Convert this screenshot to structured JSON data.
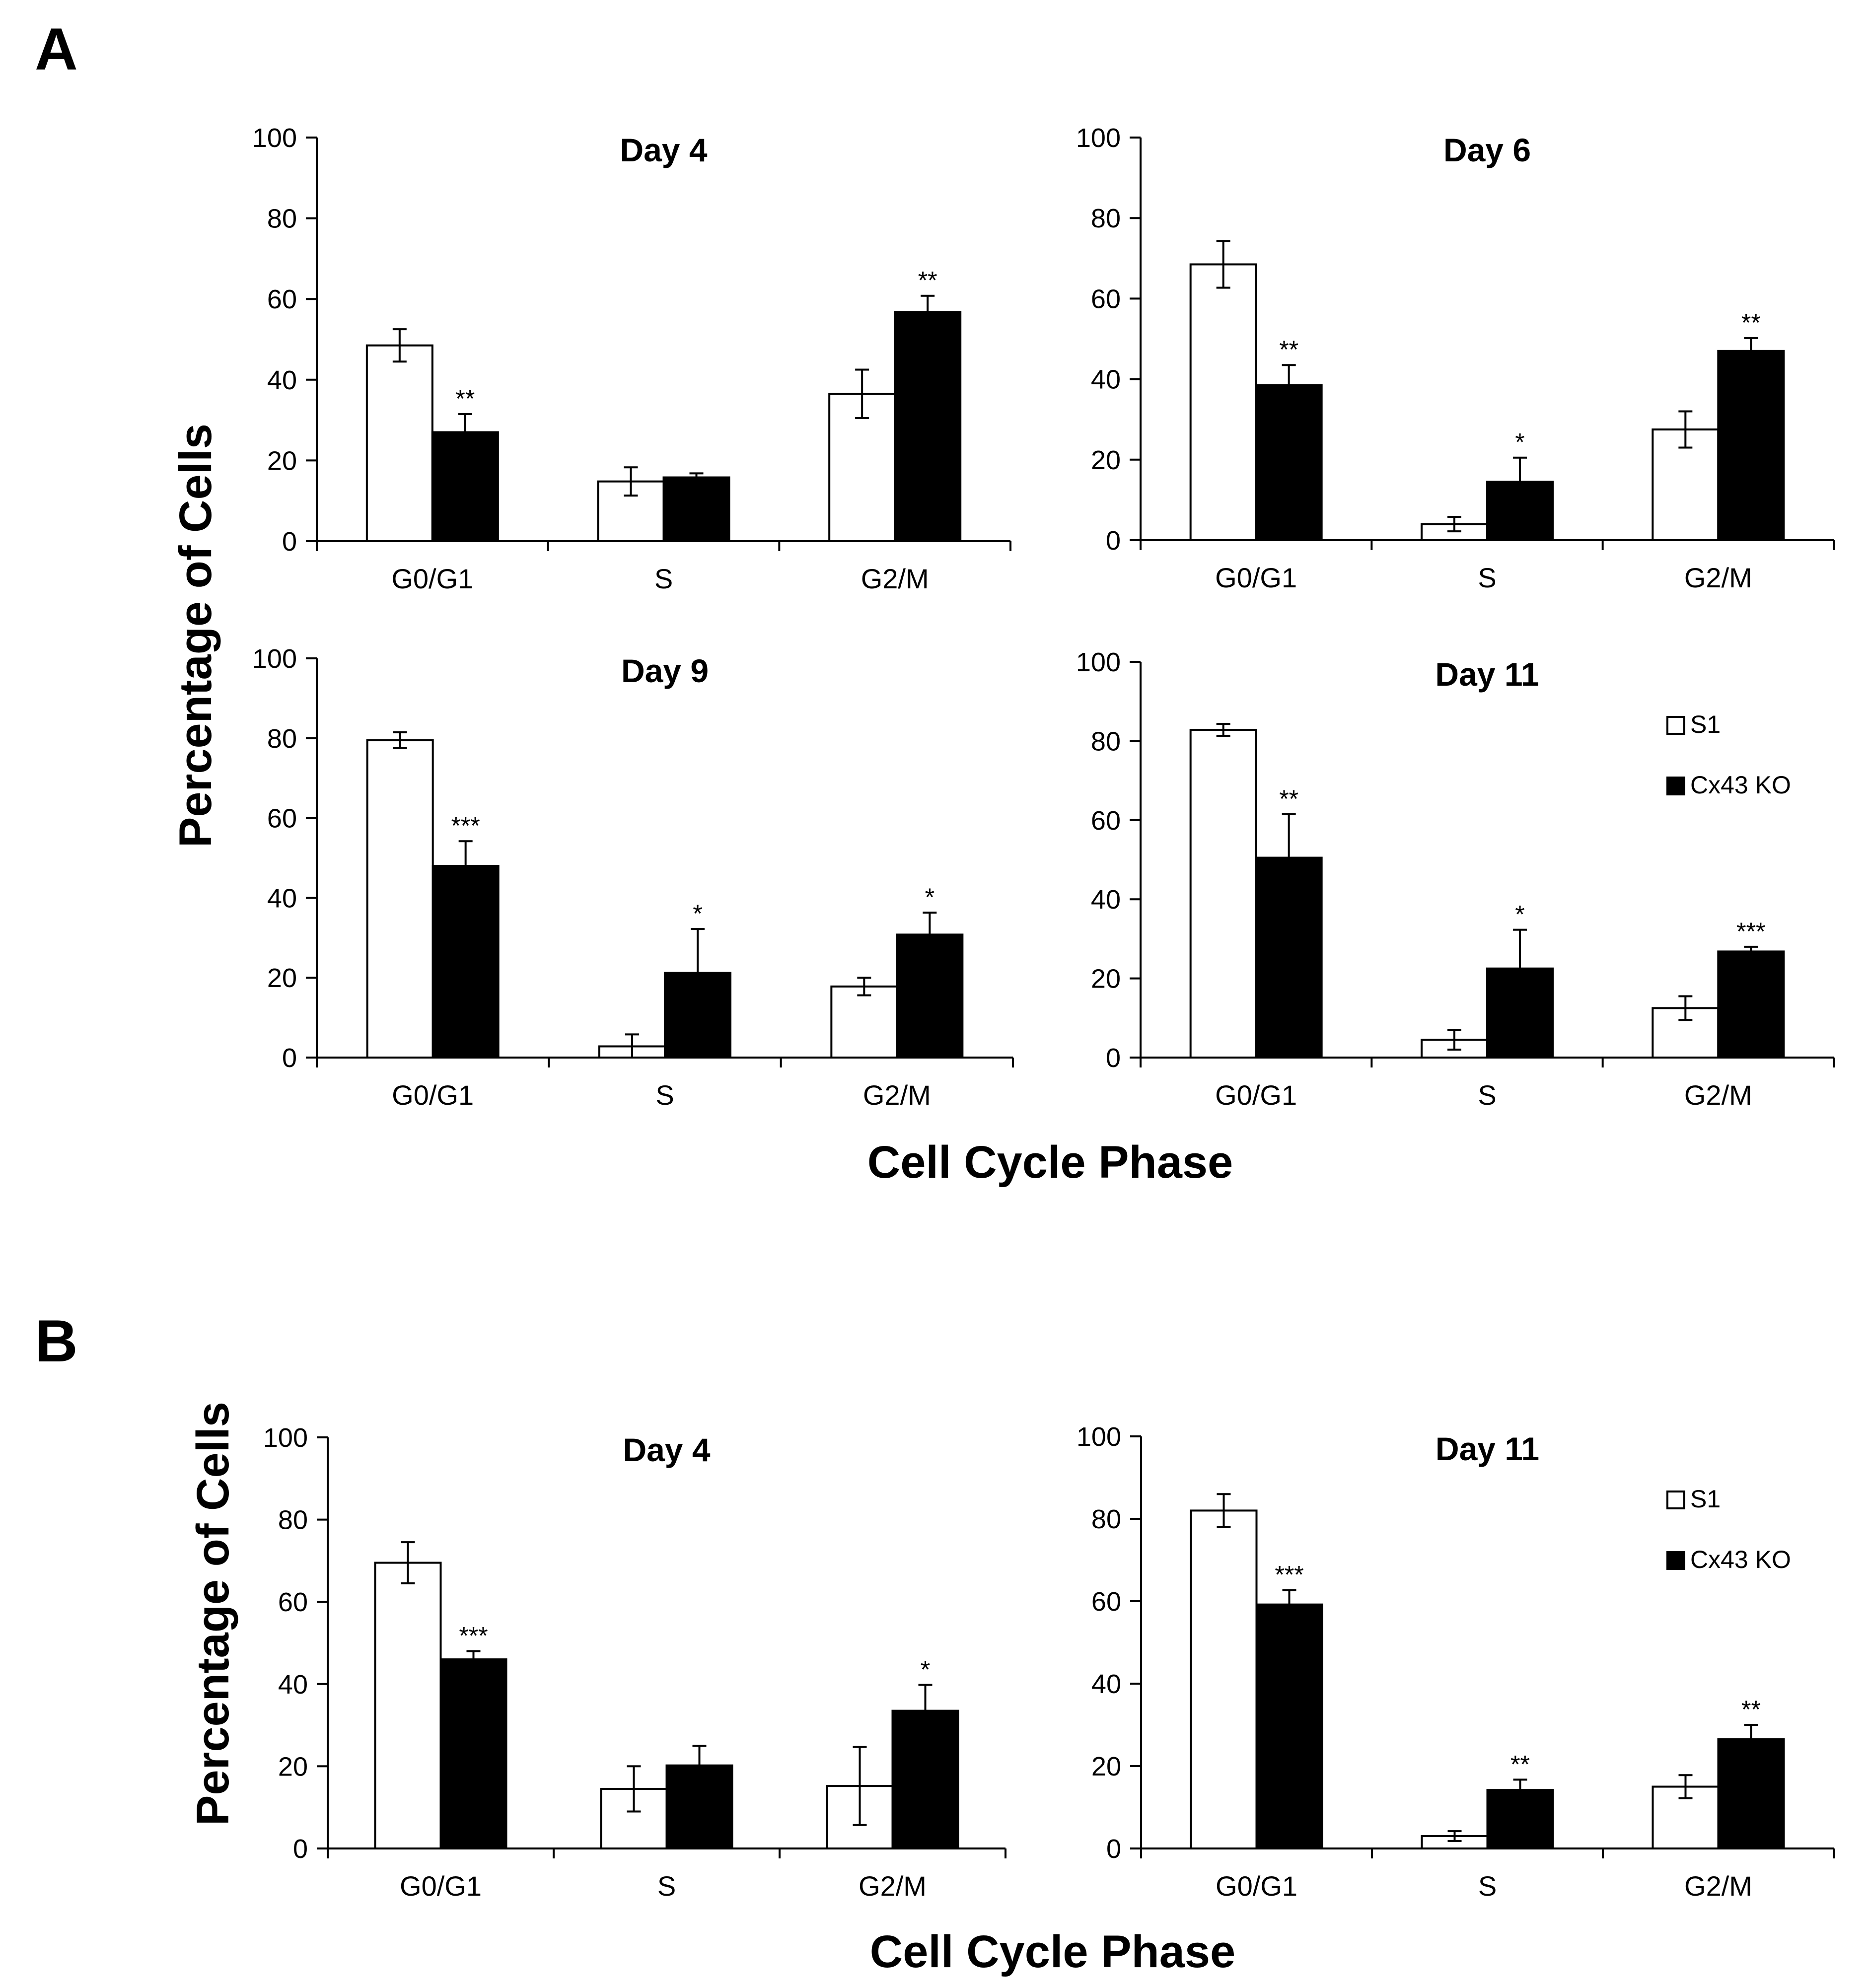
{
  "figure": {
    "panel_a_letter": "A",
    "panel_b_letter": "B",
    "panel_a_ylabel": "Percentage of Cells",
    "panel_a_xlabel": "Cell Cycle Phase",
    "panel_b_ylabel": "Percentage of Cells",
    "panel_b_xlabel": "Cell Cycle Phase",
    "colors": {
      "S1": "#ffffff",
      "Cx43 KO": "#000000",
      "axis": "#000000"
    }
  },
  "chart_data": [
    {
      "panel": "A",
      "type": "bar",
      "title": "Day 4",
      "categories": [
        "G0/G1",
        "S",
        "G2/M"
      ],
      "ylim": [
        0,
        100
      ],
      "yticks": [
        0,
        20,
        40,
        60,
        80,
        100
      ],
      "xlabel": "Cell Cycle Phase",
      "ylabel": "Percentage of Cells",
      "legend_shown": false,
      "series": [
        {
          "name": "S1",
          "values": [
            48.5,
            14.8,
            36.5
          ],
          "errors": [
            4,
            3.5,
            6
          ],
          "significance": [
            "",
            "",
            ""
          ]
        },
        {
          "name": "Cx43 KO",
          "values": [
            27,
            15.8,
            56.8
          ],
          "errors": [
            4.5,
            1,
            4
          ],
          "significance": [
            "**",
            "",
            "**"
          ]
        }
      ]
    },
    {
      "panel": "A",
      "type": "bar",
      "title": "Day 6",
      "categories": [
        "G0/G1",
        "S",
        "G2/M"
      ],
      "ylim": [
        0,
        100
      ],
      "yticks": [
        0,
        20,
        40,
        60,
        80,
        100
      ],
      "xlabel": "Cell Cycle Phase",
      "ylabel": "Percentage of Cells",
      "legend_shown": false,
      "series": [
        {
          "name": "S1",
          "values": [
            68.5,
            4,
            27.5
          ],
          "errors": [
            5.8,
            1.8,
            4.5
          ],
          "significance": [
            "",
            "",
            ""
          ]
        },
        {
          "name": "Cx43 KO",
          "values": [
            38.5,
            14.5,
            47
          ],
          "errors": [
            5,
            6,
            3.2
          ],
          "significance": [
            "**",
            "*",
            "**"
          ]
        }
      ]
    },
    {
      "panel": "A",
      "type": "bar",
      "title": "Day 9",
      "categories": [
        "G0/G1",
        "S",
        "G2/M"
      ],
      "ylim": [
        0,
        100
      ],
      "yticks": [
        0,
        20,
        40,
        60,
        80,
        100
      ],
      "xlabel": "Cell Cycle Phase",
      "ylabel": "Percentage of Cells",
      "legend_shown": false,
      "series": [
        {
          "name": "S1",
          "values": [
            79.5,
            2.8,
            17.8
          ],
          "errors": [
            2,
            3,
            2.2
          ],
          "significance": [
            "",
            "",
            ""
          ]
        },
        {
          "name": "Cx43 KO",
          "values": [
            48,
            21.2,
            30.8
          ],
          "errors": [
            6.2,
            11,
            5.5
          ],
          "significance": [
            "***",
            "*",
            "*"
          ]
        }
      ]
    },
    {
      "panel": "A",
      "type": "bar",
      "title": "Day 11",
      "categories": [
        "G0/G1",
        "S",
        "G2/M"
      ],
      "ylim": [
        0,
        100
      ],
      "yticks": [
        0,
        20,
        40,
        60,
        80,
        100
      ],
      "xlabel": "Cell Cycle Phase",
      "ylabel": "Percentage of Cells",
      "legend_shown": true,
      "legend_position": "top-right",
      "series": [
        {
          "name": "S1",
          "values": [
            82.8,
            4.5,
            12.5
          ],
          "errors": [
            1.5,
            2.5,
            3
          ],
          "significance": [
            "",
            "",
            ""
          ]
        },
        {
          "name": "Cx43 KO",
          "values": [
            50.5,
            22.5,
            26.8
          ],
          "errors": [
            11,
            9.8,
            1.2
          ],
          "significance": [
            "**",
            "*",
            "***"
          ]
        }
      ]
    },
    {
      "panel": "B",
      "type": "bar",
      "title": "Day 4",
      "categories": [
        "G0/G1",
        "S",
        "G2/M"
      ],
      "ylim": [
        0,
        100
      ],
      "yticks": [
        0,
        20,
        40,
        60,
        80,
        100
      ],
      "xlabel": "Cell Cycle Phase",
      "ylabel": "Percentage of Cells",
      "legend_shown": false,
      "series": [
        {
          "name": "S1",
          "values": [
            69.5,
            14.5,
            15.2
          ],
          "errors": [
            5,
            5.5,
            9.5
          ],
          "significance": [
            "",
            "",
            ""
          ]
        },
        {
          "name": "Cx43 KO",
          "values": [
            46,
            20.2,
            33.5
          ],
          "errors": [
            2,
            4.8,
            6.3
          ],
          "significance": [
            "***",
            "",
            "*"
          ]
        }
      ]
    },
    {
      "panel": "B",
      "type": "bar",
      "title": "Day 11",
      "categories": [
        "G0/G1",
        "S",
        "G2/M"
      ],
      "ylim": [
        0,
        100
      ],
      "yticks": [
        0,
        20,
        40,
        60,
        80,
        100
      ],
      "xlabel": "Cell Cycle Phase",
      "ylabel": "Percentage of Cells",
      "legend_shown": true,
      "legend_position": "top-right",
      "series": [
        {
          "name": "S1",
          "values": [
            82,
            3,
            15
          ],
          "errors": [
            4,
            1.2,
            2.8
          ],
          "significance": [
            "",
            "",
            ""
          ]
        },
        {
          "name": "Cx43 KO",
          "values": [
            59.2,
            14.2,
            26.5
          ],
          "errors": [
            3.5,
            2.5,
            3.5
          ],
          "significance": [
            "***",
            "**",
            "**"
          ]
        }
      ]
    }
  ]
}
